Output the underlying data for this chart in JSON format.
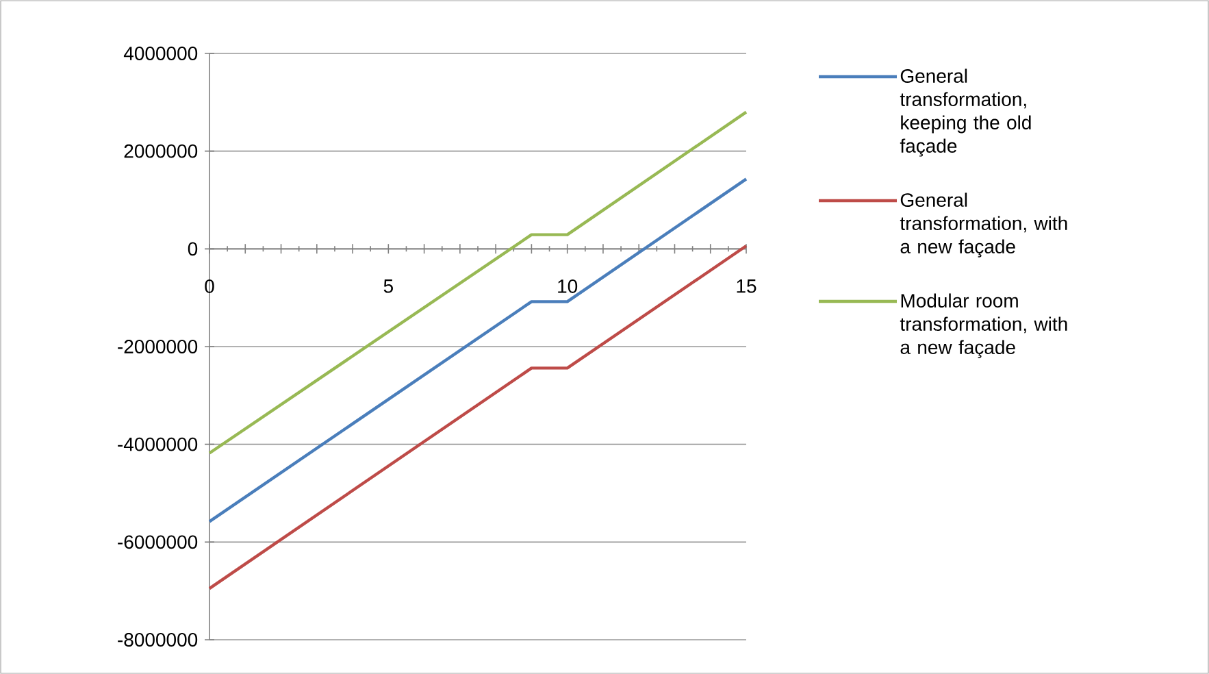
{
  "chart_data": {
    "type": "line",
    "x": [
      0,
      9,
      10,
      15
    ],
    "series": [
      {
        "name": "General transformation, keeping the old façade",
        "color": "#4a7ebb",
        "values": [
          -5580000,
          -1080000,
          -1080000,
          1430000
        ]
      },
      {
        "name": "General transformation, with a new façade",
        "color": "#be4b48",
        "values": [
          -6950000,
          -2440000,
          -2440000,
          60000
        ]
      },
      {
        "name": "Modular room transformation, with a new façade",
        "color": "#98b954",
        "values": [
          -4180000,
          290000,
          290000,
          2800000
        ]
      }
    ],
    "xlim": [
      0,
      15
    ],
    "ylim": [
      -8000000,
      4000000
    ],
    "xticks": [
      0,
      {
        "value": 1,
        "label": null
      },
      {
        "value": 2,
        "label": null
      },
      {
        "value": 3,
        "label": null
      },
      {
        "value": 4,
        "label": null
      },
      5,
      {
        "value": 6,
        "label": null
      },
      {
        "value": 7,
        "label": null
      },
      {
        "value": 8,
        "label": null
      },
      {
        "value": 9,
        "label": null
      },
      10,
      {
        "value": 11,
        "label": null
      },
      {
        "value": 12,
        "label": null
      },
      {
        "value": 13,
        "label": null
      },
      {
        "value": 14,
        "label": null
      },
      15
    ],
    "yticks": [
      -8000000,
      -6000000,
      -4000000,
      -2000000,
      0,
      2000000,
      4000000
    ],
    "grid": "y",
    "legend": "right",
    "marker": "none",
    "line_style": "solid"
  }
}
